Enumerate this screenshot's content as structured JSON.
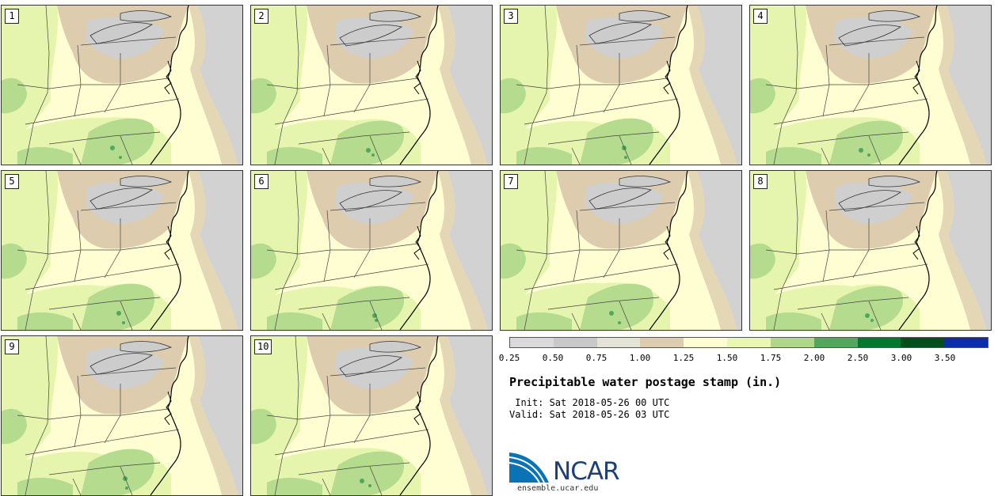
{
  "panels": [
    {
      "label": "1"
    },
    {
      "label": "2"
    },
    {
      "label": "3"
    },
    {
      "label": "4"
    },
    {
      "label": "5"
    },
    {
      "label": "6"
    },
    {
      "label": "7"
    },
    {
      "label": "8"
    },
    {
      "label": "9"
    },
    {
      "label": "10"
    }
  ],
  "colorbar": {
    "ticks": [
      "0.25",
      "0.50",
      "0.75",
      "1.00",
      "1.25",
      "1.50",
      "1.75",
      "2.00",
      "2.50",
      "3.00",
      "3.50"
    ],
    "colors": [
      "#dadada",
      "#c8c8c8",
      "#e4e4d6",
      "#ddcdae",
      "#fdfdd0",
      "#e8f8b0",
      "#aed888",
      "#4fa85c",
      "#00782f",
      "#004f1c",
      "#0b2ea8"
    ]
  },
  "title": "Precipitable water postage stamp (in.)",
  "init": " Init: Sat 2018-05-26 00 UTC",
  "valid": "Valid: Sat 2018-05-26 03 UTC",
  "logo": {
    "text": "NCAR",
    "url": "ensemble.ucar.edu"
  },
  "map_colors": {
    "ocean": "#d2d2d2",
    "lake": "#cccccc",
    "dry": "#ddcdae",
    "dry_light": "#e6dcc4",
    "grey": "#cfcfcf",
    "base": "#fefed2",
    "light_green": "#e6f5ae",
    "green": "#b5db8e",
    "dark_green": "#4fa85c"
  }
}
